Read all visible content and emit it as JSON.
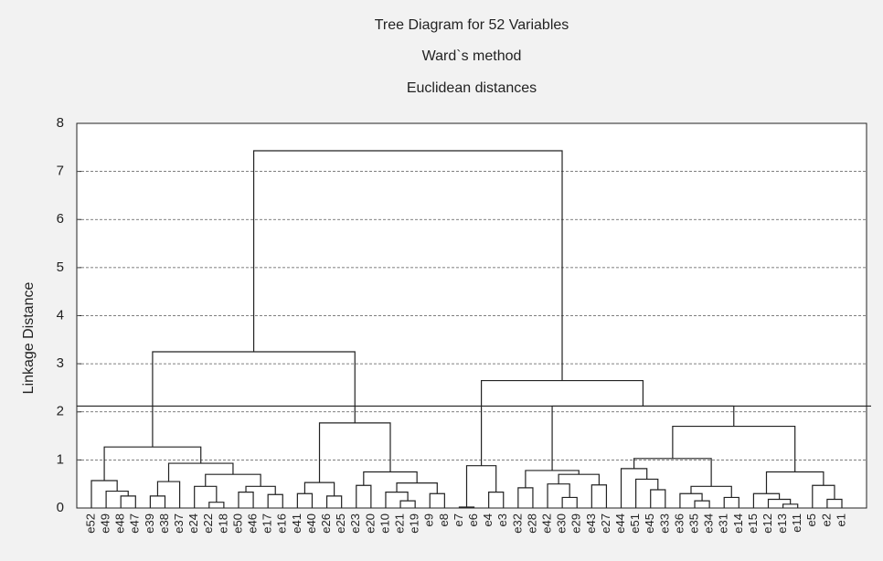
{
  "chart_data": {
    "type": "dendrogram",
    "title": "Tree Diagram for 52 Variables",
    "subtitle": [
      "Ward`s method",
      "Euclidean distances"
    ],
    "ylabel": "Linkage Distance",
    "ylim": [
      0,
      8
    ],
    "yticks": [
      0,
      1,
      2,
      3,
      4,
      5,
      6,
      7,
      8
    ],
    "grid": true,
    "cut": 2.12,
    "leaves": [
      "e52",
      "e49",
      "e48",
      "e47",
      "e39",
      "e38",
      "e37",
      "e24",
      "e22",
      "e18",
      "e50",
      "e46",
      "e17",
      "e16",
      "e41",
      "e40",
      "e26",
      "e25",
      "e23",
      "e20",
      "e10",
      "e21",
      "e19",
      "e9",
      "e8",
      "e7",
      "e6",
      "e4",
      "e3",
      "e32",
      "e28",
      "e42",
      "e30",
      "e29",
      "e43",
      "e27",
      "e44",
      "e51",
      "e45",
      "e33",
      "e36",
      "e35",
      "e34",
      "e31",
      "e14",
      "e15",
      "e12",
      "e13",
      "e11",
      "e5",
      "e2",
      "e1"
    ],
    "merges": [
      [
        2,
        3,
        0.25
      ],
      [
        1,
        52,
        0.35
      ],
      [
        0,
        53,
        0.57
      ],
      [
        4,
        5,
        0.25
      ],
      [
        55,
        6,
        0.55
      ],
      [
        8,
        9,
        0.12
      ],
      [
        7,
        57,
        0.45
      ],
      [
        10,
        11,
        0.33
      ],
      [
        12,
        13,
        0.28
      ],
      [
        59,
        60,
        0.45
      ],
      [
        58,
        61,
        0.7
      ],
      [
        56,
        62,
        0.93
      ],
      [
        54,
        63,
        1.27
      ],
      [
        14,
        15,
        0.3
      ],
      [
        16,
        17,
        0.25
      ],
      [
        65,
        66,
        0.53
      ],
      [
        18,
        19,
        0.47
      ],
      [
        21,
        22,
        0.15
      ],
      [
        20,
        69,
        0.33
      ],
      [
        23,
        24,
        0.3
      ],
      [
        70,
        71,
        0.52
      ],
      [
        68,
        72,
        0.75
      ],
      [
        67,
        73,
        1.77
      ],
      [
        64,
        74,
        3.25
      ],
      [
        25,
        26,
        0.02
      ],
      [
        27,
        28,
        0.33
      ],
      [
        76,
        77,
        0.88
      ],
      [
        29,
        30,
        0.42
      ],
      [
        32,
        33,
        0.22
      ],
      [
        31,
        80,
        0.5
      ],
      [
        34,
        35,
        0.48
      ],
      [
        81,
        82,
        0.7
      ],
      [
        79,
        83,
        0.78
      ],
      [
        38,
        39,
        0.38
      ],
      [
        37,
        85,
        0.6
      ],
      [
        36,
        86,
        0.82
      ],
      [
        41,
        42,
        0.15
      ],
      [
        40,
        88,
        0.3
      ],
      [
        43,
        44,
        0.22
      ],
      [
        89,
        90,
        0.45
      ],
      [
        87,
        91,
        1.03
      ],
      [
        47,
        48,
        0.08
      ],
      [
        46,
        93,
        0.18
      ],
      [
        45,
        94,
        0.3
      ],
      [
        50,
        51,
        0.18
      ],
      [
        49,
        96,
        0.47
      ],
      [
        95,
        97,
        0.75
      ],
      [
        92,
        98,
        1.7
      ],
      [
        84,
        99,
        2.12
      ],
      [
        78,
        100,
        2.65
      ],
      [
        75,
        101,
        7.43
      ]
    ]
  }
}
